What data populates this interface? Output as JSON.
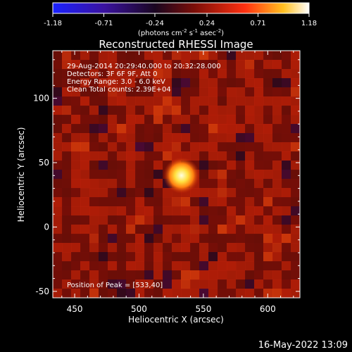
{
  "chart_data": {
    "type": "heatmap",
    "title": "Reconstructed RHESSI Image",
    "colorbar": {
      "ticks": [
        "-1.18",
        "-0.71",
        "-0.24",
        "0.24",
        "0.71",
        "1.18"
      ],
      "range": [
        -1.18,
        1.18
      ],
      "unit_prefix": "(photons cm",
      "unit_sup1": "-2",
      "unit_mid1": " s",
      "unit_sup2": "-1",
      "unit_mid2": " asec",
      "unit_sup3": "-2",
      "unit_suffix": ")"
    },
    "info_lines": [
      "29-Aug-2014 20:29:40.000 to 20:32:28.000",
      "Detectors: 3F 6F 9F, Att 0",
      "Energy Range: 3.0 - 6.0 keV",
      "Clean     Total counts: 2.39E+04"
    ],
    "peak_label": "Position of Peak = [533,40]",
    "peak": [
      533,
      40
    ],
    "xlabel": "Heliocentric X (arcsec)",
    "ylabel": "Heliocentric Y (arcsec)",
    "xlim": [
      433,
      625
    ],
    "ylim": [
      -55,
      137
    ],
    "xticks": [
      450,
      500,
      550,
      600
    ],
    "yticks": [
      -50,
      0,
      50,
      100
    ],
    "colors": {
      "background": "#000000",
      "axes": "#ffffff",
      "map_low": "#1a0a26",
      "map_mid": "#8a1708",
      "map_high": "#ffffa8"
    }
  },
  "footer": {
    "timestamp": "16-May-2022 13:09"
  }
}
